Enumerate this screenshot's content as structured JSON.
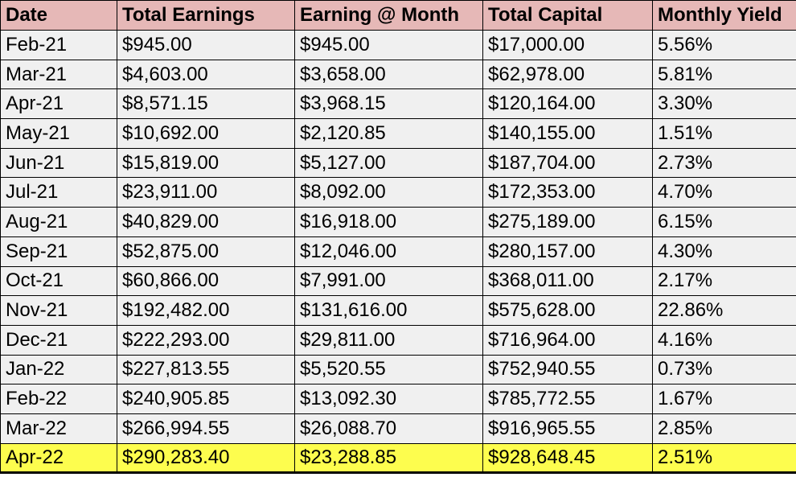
{
  "chart_data": {
    "type": "table",
    "columns": [
      "Date",
      "Total Earnings",
      "Earning @ Month",
      "Total Capital",
      "Monthly Yield"
    ],
    "rows": [
      [
        "Feb-21",
        "$945.00",
        "$945.00",
        "$17,000.00",
        "5.56%"
      ],
      [
        "Mar-21",
        "$4,603.00",
        "$3,658.00",
        "$62,978.00",
        "5.81%"
      ],
      [
        "Apr-21",
        "$8,571.15",
        "$3,968.15",
        "$120,164.00",
        "3.30%"
      ],
      [
        "May-21",
        "$10,692.00",
        "$2,120.85",
        "$140,155.00",
        "1.51%"
      ],
      [
        "Jun-21",
        "$15,819.00",
        "$5,127.00",
        "$187,704.00",
        "2.73%"
      ],
      [
        "Jul-21",
        "$23,911.00",
        "$8,092.00",
        "$172,353.00",
        "4.70%"
      ],
      [
        "Aug-21",
        "$40,829.00",
        "$16,918.00",
        "$275,189.00",
        "6.15%"
      ],
      [
        "Sep-21",
        "$52,875.00",
        "$12,046.00",
        "$280,157.00",
        "4.30%"
      ],
      [
        "Oct-21",
        "$60,866.00",
        "$7,991.00",
        "$368,011.00",
        "2.17%"
      ],
      [
        "Nov-21",
        "$192,482.00",
        "$131,616.00",
        "$575,628.00",
        "22.86%"
      ],
      [
        "Dec-21",
        "$222,293.00",
        "$29,811.00",
        "$716,964.00",
        "4.16%"
      ],
      [
        "Jan-22",
        "$227,813.55",
        "$5,520.55",
        "$752,940.55",
        "0.73%"
      ],
      [
        "Feb-22",
        "$240,905.85",
        "$13,092.30",
        "$785,772.55",
        "1.67%"
      ],
      [
        "Mar-22",
        "$266,994.55",
        "$26,088.70",
        "$916,965.55",
        "2.85%"
      ],
      [
        "Apr-22",
        "$290,283.40",
        "$23,288.85",
        "$928,648.45",
        "2.51%"
      ]
    ],
    "highlighted_row_index": 14,
    "highlighted_row_label": "Apr-22",
    "colors": {
      "header_bg": "#e6b8b7",
      "row_bg": "#f0f0f0",
      "highlight_bg": "#fdfd4e",
      "border": "#000000",
      "text": "#000000"
    }
  }
}
